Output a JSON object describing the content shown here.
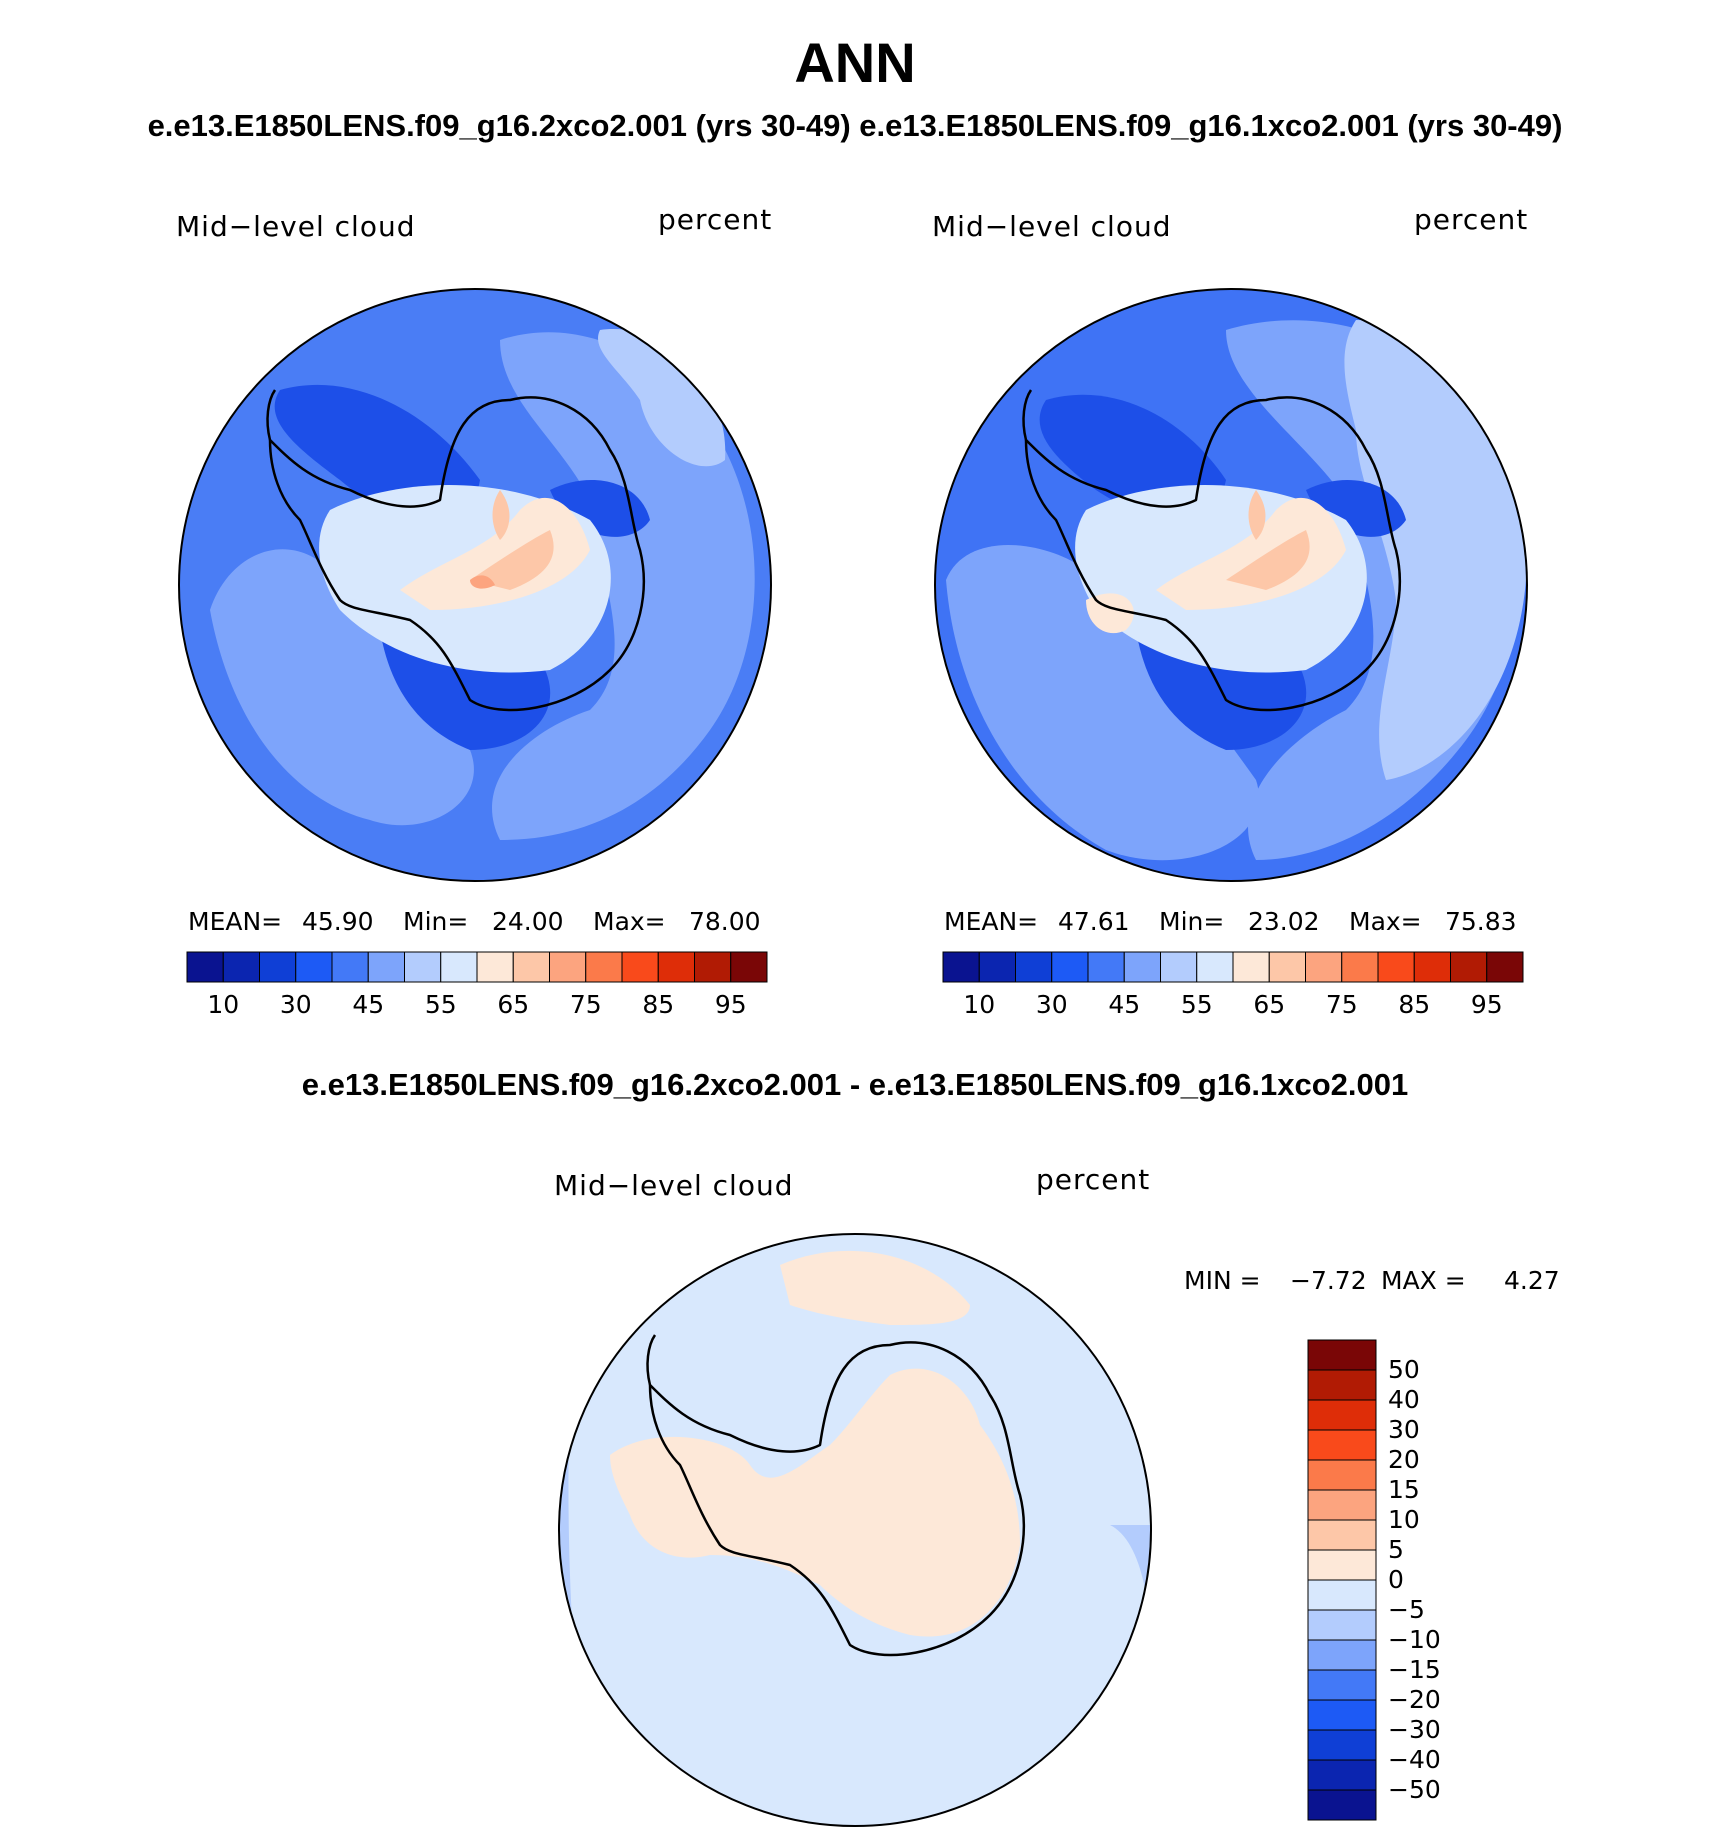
{
  "figure": {
    "title": "ANN",
    "subtitle": "e.e13.E1850LENS.f09_g16.2xco2.001 (yrs 30-49) e.e13.E1850LENS.f09_g16.1xco2.001 (yrs 30-49)",
    "diff_title": "e.e13.E1850LENS.f09_g16.2xco2.001 - e.e13.E1850LENS.f09_g16.1xco2.001"
  },
  "panels": [
    {
      "variable": "Mid−level cloud",
      "units": "percent",
      "stats": {
        "mean_label": "MEAN=",
        "mean": "45.90",
        "min_label": "Min=",
        "min": "24.00",
        "max_label": "Max=",
        "max": "78.00"
      }
    },
    {
      "variable": "Mid−level cloud",
      "units": "percent",
      "stats": {
        "mean_label": "MEAN=",
        "mean": "47.61",
        "min_label": "Min=",
        "min": "23.02",
        "max_label": "Max=",
        "max": "75.83"
      }
    },
    {
      "variable": "Mid−level cloud",
      "units": "percent",
      "stats": {
        "min_label": "MIN =",
        "min": "−7.72",
        "max_label": "MAX =",
        "max": "4.27"
      }
    }
  ],
  "colorbar_abs": {
    "colors": [
      "#0a1390",
      "#0b25b0",
      "#0f3fd6",
      "#1d5af5",
      "#4379f7",
      "#7da4fb",
      "#b3ccfd",
      "#d8e8fd",
      "#fde8d8",
      "#fdc7a8",
      "#fca47f",
      "#fb7a4a",
      "#f94a1b",
      "#de2d08",
      "#b11b04",
      "#7a0606"
    ],
    "tick_labels": [
      "10",
      "30",
      "45",
      "55",
      "65",
      "75",
      "85",
      "95"
    ]
  },
  "colorbar_diff": {
    "colors": [
      "#0a1390",
      "#0b25b0",
      "#0f3fd6",
      "#1d5af5",
      "#4379f7",
      "#7da4fb",
      "#b3ccfd",
      "#d8e8fd",
      "#fde8d8",
      "#fdc7a8",
      "#fca47f",
      "#fb7a4a",
      "#f94a1b",
      "#de2d08",
      "#b11b04",
      "#7a0606"
    ],
    "tick_labels": [
      "−50",
      "−40",
      "−30",
      "−20",
      "−15",
      "−10",
      "−5",
      "0",
      "5",
      "10",
      "15",
      "20",
      "30",
      "40",
      "50"
    ]
  },
  "map_colors": {
    "ocean_panel1": "#4a7df5",
    "ocean_panel2": "#3f73f5",
    "mid": "#7da4fb",
    "light": "#b3ccfd",
    "dark": "#1d4fe8",
    "warm1": "#fde8d8",
    "warm2": "#fdc7a8",
    "warm3": "#fca47f",
    "pale": "#d8e8fd",
    "coast": "#000000"
  }
}
